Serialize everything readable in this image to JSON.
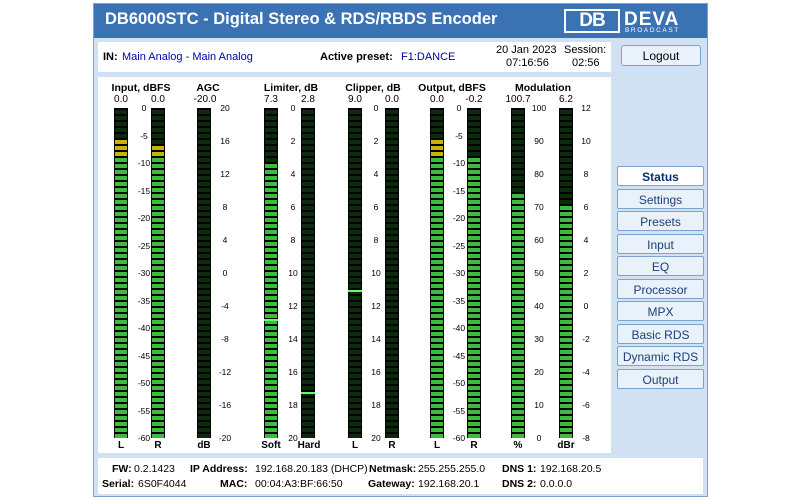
{
  "header": {
    "title": "DB6000STC - Digital Stereo & RDS/RBDS Encoder"
  },
  "logo": {
    "mark": "DB",
    "brand": "DEVA",
    "tagline": "BROADCAST"
  },
  "info": {
    "in_label": "IN:",
    "in_value": "Main Analog - Main Analog",
    "preset_label": "Active preset:",
    "preset_value": "F1:DANCE",
    "date": "20 Jan 2023",
    "time": "07:16:56",
    "session_label": "Session:",
    "session_value": "02:56"
  },
  "logout_label": "Logout",
  "meters": {
    "input": {
      "title": "Input, dBFS",
      "left_peak": "0.0",
      "right_peak": "0.0",
      "left_label": "L",
      "right_label": "R",
      "left_level": 0.9,
      "right_level": 0.89,
      "scale": [
        "0",
        "-5",
        "-10",
        "-15",
        "-20",
        "-25",
        "-30",
        "-35",
        "-40",
        "-45",
        "-50",
        "-55",
        "-60"
      ]
    },
    "agc": {
      "title": "AGC",
      "value": "-20.0",
      "label": "dB",
      "level": 0.0,
      "scale": [
        "20",
        "16",
        "12",
        "8",
        "4",
        "0",
        "-4",
        "-8",
        "-12",
        "-16",
        "-20"
      ]
    },
    "limiter": {
      "title": "Limiter, dB",
      "soft_peak": "7.3",
      "hard_peak": "2.8",
      "soft_label": "Soft",
      "hard_label": "Hard",
      "soft_level": 0.84,
      "hard_level": 0.0,
      "soft_mark": 0.64,
      "hard_mark": 0.86,
      "scale": [
        "0",
        "2",
        "4",
        "6",
        "8",
        "10",
        "12",
        "14",
        "16",
        "18",
        "20"
      ]
    },
    "clipper": {
      "title": "Clipper, dB",
      "left_peak": "9.0",
      "right_peak": "0.0",
      "left_label": "L",
      "right_label": "R",
      "left_level": 0.0,
      "right_level": 0.0,
      "left_mark": 0.55,
      "scale": [
        "0",
        "2",
        "4",
        "6",
        "8",
        "10",
        "12",
        "14",
        "16",
        "18",
        "20"
      ]
    },
    "output": {
      "title": "Output, dBFS",
      "left_peak": "0.0",
      "right_peak": "-0.2",
      "left_label": "L",
      "right_label": "R",
      "left_level": 0.9,
      "right_level": 0.86,
      "scale": [
        "0",
        "-5",
        "-10",
        "-15",
        "-20",
        "-25",
        "-30",
        "-35",
        "-40",
        "-45",
        "-50",
        "-55",
        "-60"
      ]
    },
    "modulation": {
      "title": "Modulation",
      "pct_peak": "100.7",
      "dbr_peak": "6.2",
      "pct_label": "%",
      "dbr_label": "dBr",
      "pct_level": 0.74,
      "dbr_level": 0.71,
      "pct_scale": [
        "100",
        "90",
        "80",
        "70",
        "60",
        "50",
        "40",
        "30",
        "20",
        "10",
        "0"
      ],
      "dbr_scale": [
        "12",
        "10",
        "8",
        "6",
        "4",
        "2",
        "0",
        "-2",
        "-4",
        "-6",
        "-8"
      ]
    }
  },
  "nav": {
    "items": [
      "Status",
      "Settings",
      "Presets",
      "Input",
      "EQ",
      "Processor",
      "MPX",
      "Basic RDS",
      "Dynamic RDS",
      "Output"
    ],
    "active": "Status"
  },
  "footer": {
    "fw_label": "FW:",
    "fw_value": "0.2.1423",
    "serial_label": "Serial:",
    "serial_value": "6S0F4044",
    "ip_label": "IP Address:",
    "ip_value": "192.168.20.183 (DHCP)",
    "mac_label": "MAC:",
    "mac_value": "00:04:A3:BF:66:50",
    "netmask_label": "Netmask:",
    "netmask_value": "255.255.255.0",
    "gateway_label": "Gateway:",
    "gateway_value": "192.168.20.1",
    "dns1_label": "DNS 1:",
    "dns1_value": "192.168.20.5",
    "dns2_label": "DNS 2:",
    "dns2_value": "0.0.0.0"
  },
  "colors": {
    "header": "#3a72b4",
    "panel": "#cfe1f3",
    "meter_on": "#3dbb3d",
    "meter_off": "#0c2a0c",
    "meter_yellow": "#c8b400",
    "meter_red": "#c81818"
  }
}
